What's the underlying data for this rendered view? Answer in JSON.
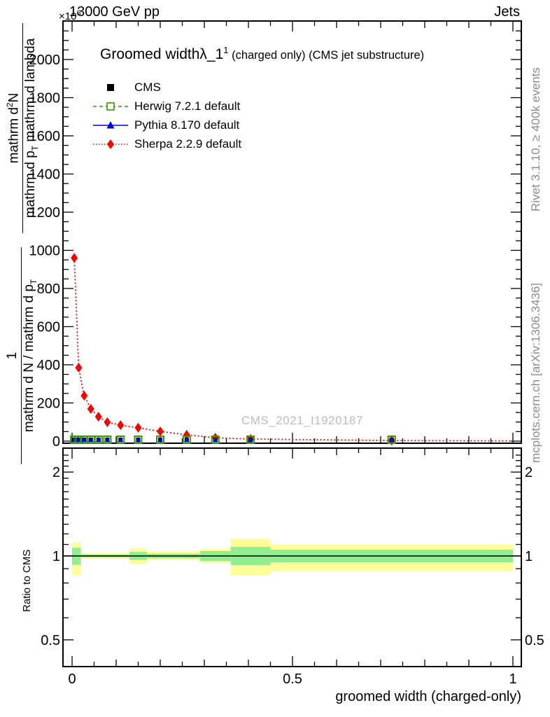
{
  "header": {
    "scale_prefix": "×10",
    "scale_exponent": "6",
    "beam": "13000 GeV pp",
    "right": "Jets"
  },
  "title": {
    "main": "Groomed width",
    "lambda": "λ_1",
    "sup": "1",
    "suffix": " (charged only) (CMS jet substructure)"
  },
  "legend": [
    {
      "id": "cms",
      "label": "CMS"
    },
    {
      "id": "herwig",
      "label": "Herwig 7.2.1 default"
    },
    {
      "id": "pythia",
      "label": "Pythia 8.170 default"
    },
    {
      "id": "sherpa",
      "label": "Sherpa 2.2.9 default"
    }
  ],
  "watermark": "CMS_2021_I1920187",
  "side_notes": {
    "top": "Rivet 3.1.10, ≥ 400k events",
    "bottom": "mcplots.cern.ch [arXiv:1306.3436]"
  },
  "ylabel_top": {
    "num_pre": "mathrm d",
    "num_sup": "2",
    "num_post": "N",
    "den_pre": "mathrm d p",
    "den_sub": "T",
    "den_post": " mathrm d lambda"
  },
  "ylabel_bottom": {
    "num": "1",
    "den_pre": "mathrm d N / mathrm d p",
    "den_sub": "T",
    "den_post": ""
  },
  "ratio_ylabel": "Ratio to CMS",
  "xlabel": "groomed width (charged-only)",
  "colors": {
    "cms": "#000000",
    "herwig": "#339900",
    "pythia": "#0000dd",
    "sherpa": "#ff0000",
    "band_yellow": "#ffff99",
    "band_green": "#90ee90",
    "gray_text": "#8c8c8c",
    "watermark": "#bdbdbd"
  },
  "chart_data": {
    "type": "line",
    "title": "Groomed width λ_1^1 (charged only) (CMS jet substructure)",
    "xlabel": "groomed width (charged-only)",
    "ylabel": "1 / (mathrm dN / mathrm dp_T) · mathrm d²N / (mathrm dp_T mathrm dlambda)",
    "y_scale_factor": "×10^6",
    "xlim": [
      0,
      1.02
    ],
    "ylim_main": [
      0,
      2200
    ],
    "x_major_ticks": [
      0,
      0.5,
      1
    ],
    "x_minor_step": 0.05,
    "y_tick_labels": [
      0,
      200,
      400,
      600,
      800,
      1000,
      1200,
      1400,
      1600,
      1800,
      2000
    ],
    "y_major_step": 200,
    "y_minor_step": 50,
    "grid": false,
    "legend_position": "top-left",
    "bin_edges": [
      0,
      0.01,
      0.02,
      0.035,
      0.05,
      0.07,
      0.09,
      0.13,
      0.17,
      0.23,
      0.29,
      0.36,
      0.45,
      1.0
    ],
    "series": [
      {
        "name": "CMS",
        "marker": "filled-square",
        "line": "none",
        "color_key": "cms",
        "values": [
          2,
          2,
          2,
          2,
          2,
          2,
          2,
          2,
          2,
          2,
          2,
          2,
          2
        ]
      },
      {
        "name": "Herwig 7.2.1 default",
        "marker": "open-square",
        "line": "dashed",
        "color_key": "herwig",
        "values": [
          3,
          3,
          3,
          3,
          3,
          3,
          3,
          2,
          2,
          2,
          2,
          2,
          2
        ]
      },
      {
        "name": "Pythia 8.170 default",
        "marker": "filled-triangle",
        "line": "solid",
        "color_key": "pythia",
        "values": [
          3,
          3,
          3,
          3,
          3,
          3,
          3,
          2,
          2,
          2,
          2,
          2,
          2
        ]
      },
      {
        "name": "Sherpa 2.2.9 default",
        "marker": "filled-diamond",
        "line": "dotted",
        "color_key": "sherpa",
        "values": [
          960,
          385,
          238,
          169,
          128,
          99,
          84,
          70,
          51,
          33,
          18,
          11,
          3
        ]
      }
    ],
    "sherpa_tail_end": [
      1.0,
      1
    ],
    "ratio_panel": {
      "ylabel": "Ratio to CMS",
      "yscale": "log",
      "ylim": [
        0.42,
        2.45
      ],
      "ytick_labels": [
        0.5,
        1,
        2
      ],
      "unity_line": 1,
      "bands": [
        {
          "x0": 0.0,
          "x1": 0.02,
          "yellow": [
            0.85,
            1.12
          ],
          "green": [
            0.93,
            1.07
          ]
        },
        {
          "x0": 0.02,
          "x1": 0.13,
          "yellow": [
            0.977,
            1.023
          ],
          "green": [
            0.988,
            1.012
          ]
        },
        {
          "x0": 0.13,
          "x1": 0.17,
          "yellow": [
            0.938,
            1.066
          ],
          "green": [
            0.968,
            1.034
          ]
        },
        {
          "x0": 0.17,
          "x1": 0.29,
          "yellow": [
            0.966,
            1.035
          ],
          "green": [
            0.982,
            1.018
          ]
        },
        {
          "x0": 0.29,
          "x1": 0.36,
          "yellow": [
            0.944,
            1.06
          ],
          "green": [
            0.96,
            1.041
          ]
        },
        {
          "x0": 0.36,
          "x1": 0.45,
          "yellow": [
            0.85,
            1.156
          ],
          "green": [
            0.928,
            1.078
          ]
        },
        {
          "x0": 0.45,
          "x1": 1.0,
          "yellow": [
            0.881,
            1.103
          ],
          "green": [
            0.949,
            1.053
          ]
        }
      ]
    }
  }
}
